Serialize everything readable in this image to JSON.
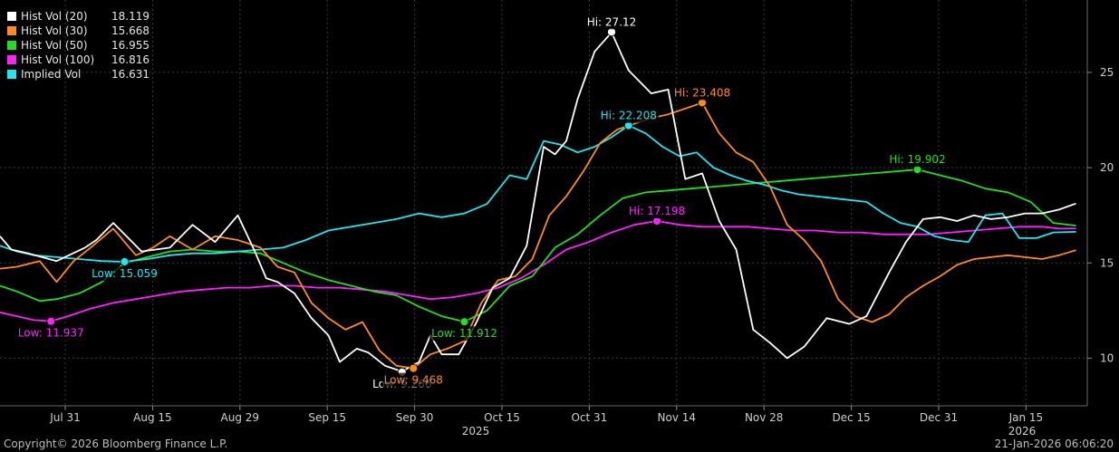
{
  "chart_data": {
    "type": "line",
    "xlabel": "",
    "ylabel": "",
    "ylim": [
      7.5,
      28.8
    ],
    "y_ticks": [
      10,
      15,
      20,
      25
    ],
    "x_tick_labels": [
      "Jul 31",
      "Aug 15",
      "Aug 29",
      "Sep 15",
      "Sep 30",
      "Oct 15",
      "Oct 31",
      "Nov 14",
      "Nov 28",
      "Dec 15",
      "Dec 31",
      "Jan 15"
    ],
    "year_labels": [
      "2025",
      "2026"
    ],
    "legend": [
      {
        "name": "Hist Vol (20)",
        "value": "18.119",
        "color": "#ffffff"
      },
      {
        "name": "Hist Vol (30)",
        "value": "15.668",
        "color": "#ff8c1a"
      },
      {
        "name": "Hist Vol (50)",
        "value": "16.955",
        "color": "#22dd22"
      },
      {
        "name": "Hist Vol (100)",
        "value": "16.816",
        "color": "#ff22ff"
      },
      {
        "name": "Implied Vol",
        "value": "16.631",
        "color": "#22e5ee"
      }
    ],
    "series": [
      {
        "name": "Hist Vol (20)",
        "color": "#ffffff",
        "x": [
          0,
          2,
          5,
          10,
          15,
          17,
          20,
          25,
          30,
          34,
          38,
          42,
          45,
          47,
          49,
          52,
          55,
          58,
          60,
          63,
          65,
          68,
          71,
          74,
          76,
          78,
          81,
          84,
          87,
          90,
          93,
          96,
          98,
          100,
          102,
          105,
          108,
          111,
          115,
          118,
          121,
          124,
          127,
          130,
          133,
          136,
          139,
          142,
          146,
          150,
          153,
          157,
          160,
          163,
          166,
          169,
          172,
          175,
          178,
          181,
          184,
          187,
          190
        ],
        "y": [
          16.4,
          15.7,
          15.5,
          15.1,
          15.8,
          16.2,
          17.1,
          15.6,
          15.8,
          17.0,
          16.1,
          17.5,
          15.6,
          14.2,
          14.0,
          13.4,
          12.1,
          11.2,
          9.8,
          10.5,
          10.3,
          9.6,
          9.3,
          9.8,
          11.2,
          10.2,
          10.2,
          11.8,
          13.7,
          14.2,
          15.9,
          21.1,
          20.7,
          21.4,
          23.6,
          26.1,
          27.1,
          25.1,
          23.9,
          24.1,
          19.4,
          19.7,
          17.2,
          15.7,
          11.5,
          10.8,
          10.0,
          10.6,
          12.1,
          11.8,
          12.2,
          14.5,
          16.1,
          17.3,
          17.4,
          17.2,
          17.5,
          17.3,
          17.4,
          17.6,
          17.6,
          17.8,
          18.119
        ]
      },
      {
        "name": "Hist Vol (30)",
        "color": "#ff8c1a",
        "x": [
          0,
          3,
          7,
          10,
          13,
          16,
          20,
          24,
          27,
          30,
          34,
          38,
          42,
          46,
          49,
          52,
          55,
          58,
          61,
          64,
          67,
          70,
          73,
          76,
          79,
          82,
          85,
          88,
          91,
          94,
          97,
          100,
          103,
          106,
          109,
          112,
          115,
          118,
          121,
          124,
          127,
          130,
          133,
          136,
          139,
          142,
          145,
          148,
          151,
          154,
          157,
          160,
          163,
          166,
          169,
          172,
          175,
          178,
          181,
          184,
          187,
          190
        ],
        "y": [
          14.7,
          14.8,
          15.1,
          14.0,
          15.1,
          15.8,
          16.8,
          15.4,
          15.8,
          16.4,
          15.7,
          16.4,
          16.2,
          15.8,
          14.8,
          14.5,
          12.9,
          12.1,
          11.5,
          11.9,
          10.4,
          9.6,
          9.47,
          10.2,
          10.5,
          10.9,
          12.9,
          14.1,
          14.3,
          15.2,
          17.5,
          18.5,
          19.8,
          21.3,
          22.0,
          22.3,
          22.6,
          22.8,
          23.1,
          23.408,
          21.8,
          20.8,
          20.3,
          19.0,
          17.0,
          16.2,
          15.1,
          13.1,
          12.2,
          11.9,
          12.3,
          13.2,
          13.8,
          14.3,
          14.9,
          15.2,
          15.3,
          15.4,
          15.3,
          15.2,
          15.4,
          15.668
        ]
      },
      {
        "name": "Hist Vol (50)",
        "color": "#22dd22",
        "x": [
          0,
          3,
          7,
          10,
          14,
          18,
          22,
          26,
          30,
          34,
          38,
          42,
          46,
          50,
          54,
          58,
          62,
          66,
          70,
          74,
          78,
          82,
          86,
          90,
          94,
          98,
          102,
          106,
          110,
          114,
          118,
          122,
          126,
          130,
          134,
          138,
          142,
          146,
          150,
          154,
          158,
          162,
          166,
          170,
          174,
          178,
          182,
          186,
          190
        ],
        "y": [
          13.8,
          13.5,
          13.0,
          13.1,
          13.4,
          14.0,
          15.0,
          15.3,
          15.6,
          15.7,
          15.6,
          15.6,
          15.5,
          15.0,
          14.5,
          14.1,
          13.8,
          13.5,
          13.3,
          12.7,
          12.2,
          11.91,
          12.5,
          13.8,
          14.3,
          15.8,
          16.5,
          17.5,
          18.4,
          18.7,
          18.8,
          18.9,
          19.0,
          19.1,
          19.2,
          19.3,
          19.4,
          19.5,
          19.6,
          19.7,
          19.8,
          19.902,
          19.6,
          19.3,
          18.9,
          18.7,
          18.2,
          17.1,
          16.955
        ]
      },
      {
        "name": "Hist Vol (100)",
        "color": "#ff22ff",
        "x": [
          0,
          3,
          6,
          9,
          12,
          16,
          20,
          24,
          28,
          32,
          36,
          40,
          44,
          48,
          52,
          56,
          60,
          64,
          68,
          72,
          76,
          80,
          84,
          88,
          92,
          96,
          100,
          104,
          108,
          112,
          116,
          120,
          124,
          128,
          132,
          136,
          140,
          144,
          148,
          152,
          156,
          160,
          164,
          168,
          172,
          176,
          180,
          184,
          187,
          190
        ],
        "y": [
          12.4,
          12.2,
          12.0,
          11.94,
          12.2,
          12.6,
          12.9,
          13.1,
          13.3,
          13.5,
          13.6,
          13.7,
          13.7,
          13.8,
          13.8,
          13.7,
          13.7,
          13.6,
          13.5,
          13.3,
          13.1,
          13.2,
          13.4,
          13.7,
          14.2,
          14.9,
          15.7,
          16.1,
          16.6,
          17.0,
          17.198,
          17.0,
          16.9,
          16.9,
          16.9,
          16.8,
          16.7,
          16.7,
          16.6,
          16.6,
          16.5,
          16.5,
          16.5,
          16.6,
          16.7,
          16.8,
          16.9,
          16.9,
          16.8,
          16.816
        ]
      },
      {
        "name": "Implied Vol",
        "color": "#22e5ee",
        "x": [
          0,
          3,
          6,
          10,
          14,
          18,
          22,
          26,
          30,
          34,
          38,
          42,
          46,
          50,
          54,
          58,
          62,
          66,
          70,
          74,
          78,
          82,
          86,
          90,
          93,
          96,
          99,
          102,
          105,
          108,
          111,
          114,
          117,
          120,
          123,
          126,
          129,
          132,
          135,
          138,
          141,
          144,
          147,
          150,
          153,
          156,
          159,
          162,
          165,
          168,
          171,
          174,
          177,
          180,
          183,
          186,
          190
        ],
        "y": [
          15.9,
          15.6,
          15.4,
          15.3,
          15.2,
          15.1,
          15.06,
          15.2,
          15.4,
          15.5,
          15.5,
          15.6,
          15.7,
          15.8,
          16.2,
          16.7,
          16.9,
          17.1,
          17.3,
          17.6,
          17.4,
          17.6,
          18.1,
          19.6,
          19.4,
          21.4,
          21.2,
          20.8,
          21.1,
          21.6,
          22.208,
          21.8,
          21.1,
          20.6,
          20.8,
          20.0,
          19.6,
          19.3,
          19.1,
          18.8,
          18.6,
          18.5,
          18.4,
          18.3,
          18.2,
          17.6,
          17.1,
          16.9,
          16.4,
          16.2,
          16.1,
          17.5,
          17.6,
          16.3,
          16.3,
          16.6,
          16.631
        ]
      }
    ],
    "annotations": [
      {
        "text": "Hi: 27.12",
        "series": "Hist Vol (20)",
        "x": 108,
        "y": 27.12
      },
      {
        "text": "Low: 9.266",
        "series": "Hist Vol (20)",
        "x": 71,
        "y": 9.266
      },
      {
        "text": "Hi: 23.408",
        "series": "Hist Vol (30)",
        "x": 124,
        "y": 23.408
      },
      {
        "text": "Low: 9.468",
        "series": "Hist Vol (30)",
        "x": 73,
        "y": 9.468
      },
      {
        "text": "Hi: 19.902",
        "series": "Hist Vol (50)",
        "x": 162,
        "y": 19.902
      },
      {
        "text": "Low: 11.912",
        "series": "Hist Vol (50)",
        "x": 82,
        "y": 11.912
      },
      {
        "text": "Hi: 17.198",
        "series": "Hist Vol (100)",
        "x": 116,
        "y": 17.198
      },
      {
        "text": "Low: 11.937",
        "series": "Hist Vol (100)",
        "x": 9,
        "y": 11.937
      },
      {
        "text": "Hi: 22.208",
        "series": "Implied Vol",
        "x": 111,
        "y": 22.208
      },
      {
        "text": "Low: 15.059",
        "series": "Implied Vol",
        "x": 22,
        "y": 15.059
      }
    ]
  },
  "footer": {
    "copyright": "Copyright© 2026 Bloomberg Finance L.P.",
    "timestamp": "21-Jan-2026 06:06:20"
  }
}
